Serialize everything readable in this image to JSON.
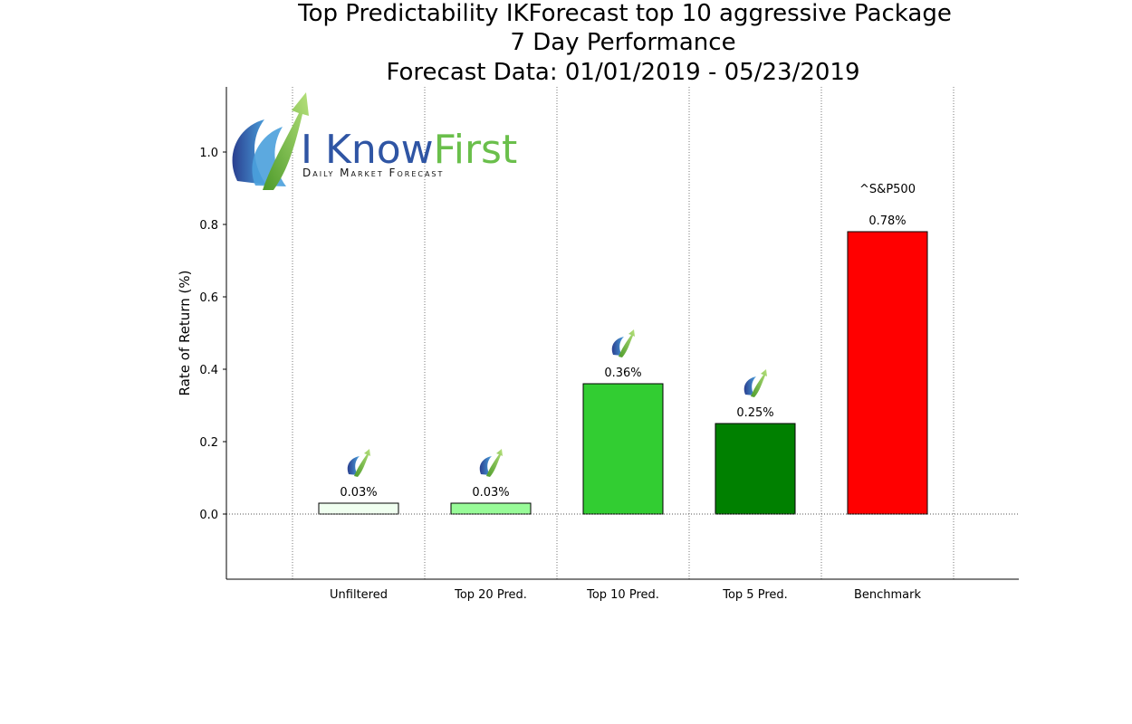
{
  "chart_data": {
    "type": "bar",
    "title": [
      "Top Predictability IKForecast top 10 aggressive Package",
      "7 Day Performance",
      "Forecast Data: 01/01/2019 - 05/23/2019"
    ],
    "ylabel": "Rate of Return (%)",
    "xlabel": "",
    "ylim": [
      -0.18,
      1.18
    ],
    "yticks": [
      "0.0",
      "0.2",
      "0.4",
      "0.6",
      "0.8",
      "1.0"
    ],
    "ytick_values": [
      0.0,
      0.2,
      0.4,
      0.6,
      0.8,
      1.0
    ],
    "categories": [
      "Unfiltered",
      "Top 20 Pred.",
      "Top 10 Pred.",
      "Top 5 Pred.",
      "Benchmark"
    ],
    "values": [
      0.03,
      0.03,
      0.36,
      0.25,
      0.78
    ],
    "value_labels": [
      "0.03%",
      "0.03%",
      "0.36%",
      "0.25%",
      "0.78%"
    ],
    "colors": [
      "#f0fff0",
      "#98fb98",
      "#32cd32",
      "#008000",
      "#ff0000"
    ],
    "benchmark_annotation": "^S&P500",
    "grid": "vertical dotted",
    "zero_line": true
  },
  "logo": {
    "wordmark_part1": "I Know",
    "wordmark_part2": "First",
    "tagline": "Daily Market Forecast",
    "colors": {
      "blue": "#2f55a4",
      "green": "#6abf4b",
      "light_blue": "#4aa0dc"
    }
  }
}
